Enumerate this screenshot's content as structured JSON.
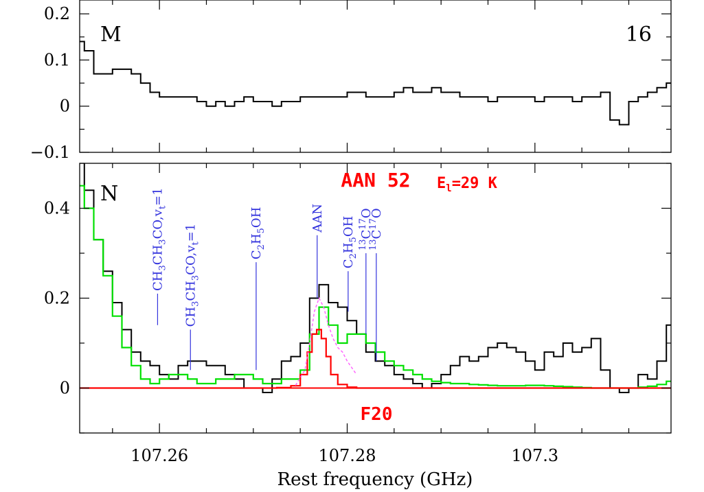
{
  "chart_data": {
    "type": "line",
    "xlabel": "Rest frequency (GHz)",
    "xlim": [
      107.2515,
      107.3145
    ],
    "x_ticks": [
      "107.26",
      "107.28",
      "107.3"
    ],
    "colors": {
      "observed": "#000000",
      "model_total": "#00e000",
      "model_species": "#ff0000",
      "model_other": "#ff66ff",
      "line_markers": "#3333dd"
    },
    "panels": [
      {
        "name": "residual",
        "corner_left": "M",
        "corner_right": "16",
        "ylim": [
          -0.1,
          0.23
        ],
        "y_ticks": [
          "−0.1",
          "0",
          "0.1",
          "0.2"
        ],
        "series": [
          {
            "key": "observed",
            "style": "step",
            "color": "#000000",
            "x": [
              107.2515,
              107.2525,
              107.2535,
              107.2545,
              107.2555,
              107.2565,
              107.2575,
              107.2585,
              107.2595,
              107.2605,
              107.2615,
              107.2625,
              107.2635,
              107.2645,
              107.2655,
              107.2665,
              107.2675,
              107.2685,
              107.2695,
              107.2705,
              107.2715,
              107.2725,
              107.2735,
              107.2745,
              107.2755,
              107.2765,
              107.2775,
              107.2785,
              107.2795,
              107.2805,
              107.2815,
              107.2825,
              107.2835,
              107.2845,
              107.2855,
              107.2865,
              107.2875,
              107.2885,
              107.2895,
              107.2905,
              107.2915,
              107.2925,
              107.2935,
              107.2945,
              107.2955,
              107.2965,
              107.2975,
              107.2985,
              107.2995,
              107.3005,
              107.3015,
              107.3025,
              107.3035,
              107.3045,
              107.3055,
              107.3065,
              107.3075,
              107.3085,
              107.3095,
              107.3105,
              107.3115,
              107.3125,
              107.3135,
              107.3145
            ],
            "y": [
              0.14,
              0.12,
              0.07,
              0.07,
              0.08,
              0.08,
              0.07,
              0.05,
              0.03,
              0.02,
              0.02,
              0.02,
              0.02,
              0.01,
              0.0,
              0.01,
              0.0,
              0.01,
              0.02,
              0.01,
              0.01,
              0.0,
              0.01,
              0.01,
              0.02,
              0.02,
              0.02,
              0.02,
              0.02,
              0.03,
              0.03,
              0.02,
              0.02,
              0.02,
              0.03,
              0.04,
              0.03,
              0.03,
              0.04,
              0.03,
              0.03,
              0.02,
              0.02,
              0.02,
              0.01,
              0.02,
              0.02,
              0.02,
              0.02,
              0.01,
              0.02,
              0.02,
              0.02,
              0.01,
              0.02,
              0.02,
              0.03,
              -0.03,
              -0.04,
              0.01,
              0.02,
              0.03,
              0.04,
              0.05
            ]
          }
        ]
      },
      {
        "name": "spectrum",
        "corner_left": "N",
        "species_label": "AAN 52",
        "energy_label": "E",
        "energy_subscript": "l",
        "energy_value": "=29 K",
        "fit_label": "F20",
        "ylim": [
          -0.1,
          0.5
        ],
        "y_ticks": [
          "0",
          "0.2",
          "0.4"
        ],
        "series": [
          {
            "key": "observed",
            "style": "step",
            "color": "#000000",
            "x": [
              107.2515,
              107.2525,
              107.2535,
              107.2545,
              107.2555,
              107.2565,
              107.2575,
              107.2585,
              107.2595,
              107.2605,
              107.2615,
              107.2625,
              107.2635,
              107.2645,
              107.2655,
              107.2665,
              107.2675,
              107.2685,
              107.2695,
              107.2705,
              107.2715,
              107.2725,
              107.2735,
              107.2745,
              107.2755,
              107.2765,
              107.2775,
              107.2785,
              107.2795,
              107.2805,
              107.2815,
              107.2825,
              107.2835,
              107.2845,
              107.2855,
              107.2865,
              107.2875,
              107.2885,
              107.2895,
              107.2905,
              107.2915,
              107.2925,
              107.2935,
              107.2945,
              107.2955,
              107.2965,
              107.2975,
              107.2985,
              107.2995,
              107.3005,
              107.3015,
              107.3025,
              107.3035,
              107.3045,
              107.3055,
              107.3065,
              107.3075,
              107.3085,
              107.3095,
              107.3105,
              107.3115,
              107.3125,
              107.3135,
              107.3145
            ],
            "y": [
              0.55,
              0.44,
              0.33,
              0.26,
              0.19,
              0.13,
              0.08,
              0.06,
              0.05,
              0.03,
              0.02,
              0.05,
              0.06,
              0.06,
              0.05,
              0.05,
              0.03,
              0.02,
              0.0,
              0.0,
              -0.01,
              0.02,
              0.06,
              0.07,
              0.1,
              0.2,
              0.23,
              0.19,
              0.18,
              0.15,
              0.12,
              0.08,
              0.06,
              0.05,
              0.03,
              0.02,
              0.01,
              0.0,
              0.01,
              0.03,
              0.05,
              0.07,
              0.06,
              0.07,
              0.09,
              0.1,
              0.09,
              0.08,
              0.06,
              0.04,
              0.08,
              0.07,
              0.1,
              0.08,
              0.09,
              0.11,
              0.04,
              0.0,
              -0.01,
              0.0,
              0.03,
              0.02,
              0.06,
              0.14
            ]
          },
          {
            "key": "model_total",
            "style": "step",
            "color": "#00e000",
            "x": [
              107.2515,
              107.2525,
              107.2535,
              107.2545,
              107.2555,
              107.2565,
              107.2575,
              107.2585,
              107.2595,
              107.2605,
              107.2615,
              107.2625,
              107.2635,
              107.2645,
              107.2655,
              107.2665,
              107.2675,
              107.2685,
              107.2695,
              107.2705,
              107.2715,
              107.2725,
              107.2735,
              107.2745,
              107.2755,
              107.2765,
              107.2775,
              107.2785,
              107.2795,
              107.2805,
              107.2815,
              107.2825,
              107.2835,
              107.2845,
              107.2855,
              107.2865,
              107.2875,
              107.2885,
              107.2895,
              107.2905,
              107.2915,
              107.2925,
              107.2935,
              107.2945,
              107.2955,
              107.2965,
              107.2975,
              107.2985,
              107.2995,
              107.3005,
              107.3015,
              107.3025,
              107.3035,
              107.3045,
              107.3055,
              107.3065,
              107.3075,
              107.3085,
              107.3095,
              107.3105,
              107.3115,
              107.3125,
              107.3135,
              107.3145
            ],
            "y": [
              0.45,
              0.4,
              0.33,
              0.25,
              0.16,
              0.09,
              0.05,
              0.02,
              0.01,
              0.02,
              0.03,
              0.03,
              0.02,
              0.01,
              0.01,
              0.02,
              0.02,
              0.03,
              0.03,
              0.02,
              0.01,
              0.01,
              0.02,
              0.02,
              0.04,
              0.12,
              0.18,
              0.14,
              0.1,
              0.12,
              0.12,
              0.1,
              0.08,
              0.06,
              0.05,
              0.04,
              0.03,
              0.02,
              0.015,
              0.012,
              0.01,
              0.01,
              0.008,
              0.007,
              0.006,
              0.005,
              0.005,
              0.005,
              0.006,
              0.006,
              0.005,
              0.004,
              0.003,
              0.002,
              0.001,
              0.0,
              0.0,
              0.0,
              0.0,
              0.0,
              0.002,
              0.004,
              0.008,
              0.015
            ]
          },
          {
            "key": "model_species",
            "style": "step",
            "color": "#ff0000",
            "x": [
              107.2515,
              107.2535,
              107.2555,
              107.2575,
              107.2595,
              107.2615,
              107.2635,
              107.2655,
              107.2675,
              107.2695,
              107.2715,
              107.2735,
              107.2745,
              107.2755,
              107.276,
              107.2765,
              107.277,
              107.2775,
              107.278,
              107.2785,
              107.2795,
              107.2805,
              107.2815,
              107.2835,
              107.2865,
              107.2905,
              107.2965,
              107.3025,
              107.3085,
              107.3145
            ],
            "y": [
              0,
              0,
              0,
              0,
              0,
              0,
              0,
              0,
              0,
              0,
              0,
              0.001,
              0.005,
              0.03,
              0.08,
              0.12,
              0.13,
              0.11,
              0.07,
              0.03,
              0.008,
              0.002,
              0,
              0,
              0,
              0,
              0,
              0,
              0,
              0
            ]
          },
          {
            "key": "model_other",
            "style": "dashed",
            "color": "#ff66ff",
            "x": [
              107.2745,
              107.2755,
              107.276,
              107.2765,
              107.277,
              107.2775,
              107.278,
              107.2785,
              107.279,
              107.2795,
              107.28,
              107.281
            ],
            "y": [
              0.006,
              0.04,
              0.1,
              0.17,
              0.2,
              0.18,
              0.14,
              0.11,
              0.09,
              0.08,
              0.06,
              0.03
            ]
          }
        ],
        "line_markers": [
          {
            "name": "ch3ch3co-1",
            "x": 107.2598,
            "y_from": 0.14,
            "y_to": 0.21,
            "main": "CH",
            "parts": [
              [
                "3",
                "s"
              ],
              [
                "CH",
                ""
              ],
              [
                "3",
                "s"
              ],
              [
                "CO,v",
                ""
              ],
              [
                "t",
                "s"
              ],
              [
                "=1",
                ""
              ]
            ]
          },
          {
            "name": "ch3ch3co-2",
            "x": 107.2633,
            "y_from": 0.04,
            "y_to": 0.13,
            "main": "CH",
            "parts": [
              [
                "3",
                "s"
              ],
              [
                "CH",
                ""
              ],
              [
                "3",
                "s"
              ],
              [
                "CO,v",
                ""
              ],
              [
                "t",
                "s"
              ],
              [
                "=1",
                ""
              ]
            ]
          },
          {
            "name": "c2h5oh-1",
            "x": 107.2703,
            "y_from": 0.04,
            "y_to": 0.28,
            "main": "C",
            "parts": [
              [
                "2",
                "s"
              ],
              [
                "H",
                ""
              ],
              [
                "5",
                "s"
              ],
              [
                "OH",
                ""
              ]
            ]
          },
          {
            "name": "aan",
            "x": 107.2768,
            "y_from": 0.2,
            "y_to": 0.34,
            "main": "AAN",
            "parts": []
          },
          {
            "name": "c2h5oh-2",
            "x": 107.2801,
            "y_from": 0.17,
            "y_to": 0.26,
            "main": "C",
            "parts": [
              [
                "2",
                "s"
              ],
              [
                "H",
                ""
              ],
              [
                "5",
                "s"
              ],
              [
                "OH",
                ""
              ]
            ]
          },
          {
            "name": "13c17o-a",
            "x": 107.282,
            "y_from": 0.12,
            "y_to": 0.3,
            "main": "",
            "parts": [
              [
                "13",
                "p"
              ],
              [
                "C",
                ""
              ],
              [
                "17",
                "p"
              ],
              [
                "O",
                ""
              ]
            ]
          },
          {
            "name": "13c17o-b",
            "x": 107.2831,
            "y_from": 0.06,
            "y_to": 0.3,
            "main": "",
            "parts": [
              [
                "13",
                "p"
              ],
              [
                "C",
                ""
              ],
              [
                "17",
                "p"
              ],
              [
                "O",
                ""
              ]
            ]
          }
        ]
      }
    ]
  }
}
